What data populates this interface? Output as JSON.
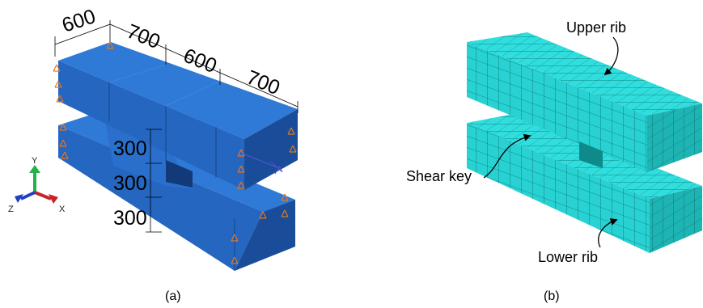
{
  "panel_a": {
    "caption": "(a)",
    "dimensions_top": [
      "600",
      "700",
      "600",
      "700"
    ],
    "dimensions_side": [
      "300",
      "300",
      "300"
    ],
    "axis_labels": {
      "y": "Y",
      "z": "Z",
      "x": "X"
    },
    "colors": {
      "top_face": "#2f7ad6",
      "front_face": "#2466c0",
      "side_face": "#1a4d99",
      "supports": "#e8761f"
    }
  },
  "panel_b": {
    "caption": "(b)",
    "labels": {
      "upper_rib": "Upper rib",
      "shear_key": "Shear key",
      "lower_rib": "Lower rib"
    },
    "colors": {
      "mesh_fill": "#2fe0e0",
      "mesh_dark": "#1aa8a8",
      "mesh_lines": "#0b6f6f"
    }
  }
}
